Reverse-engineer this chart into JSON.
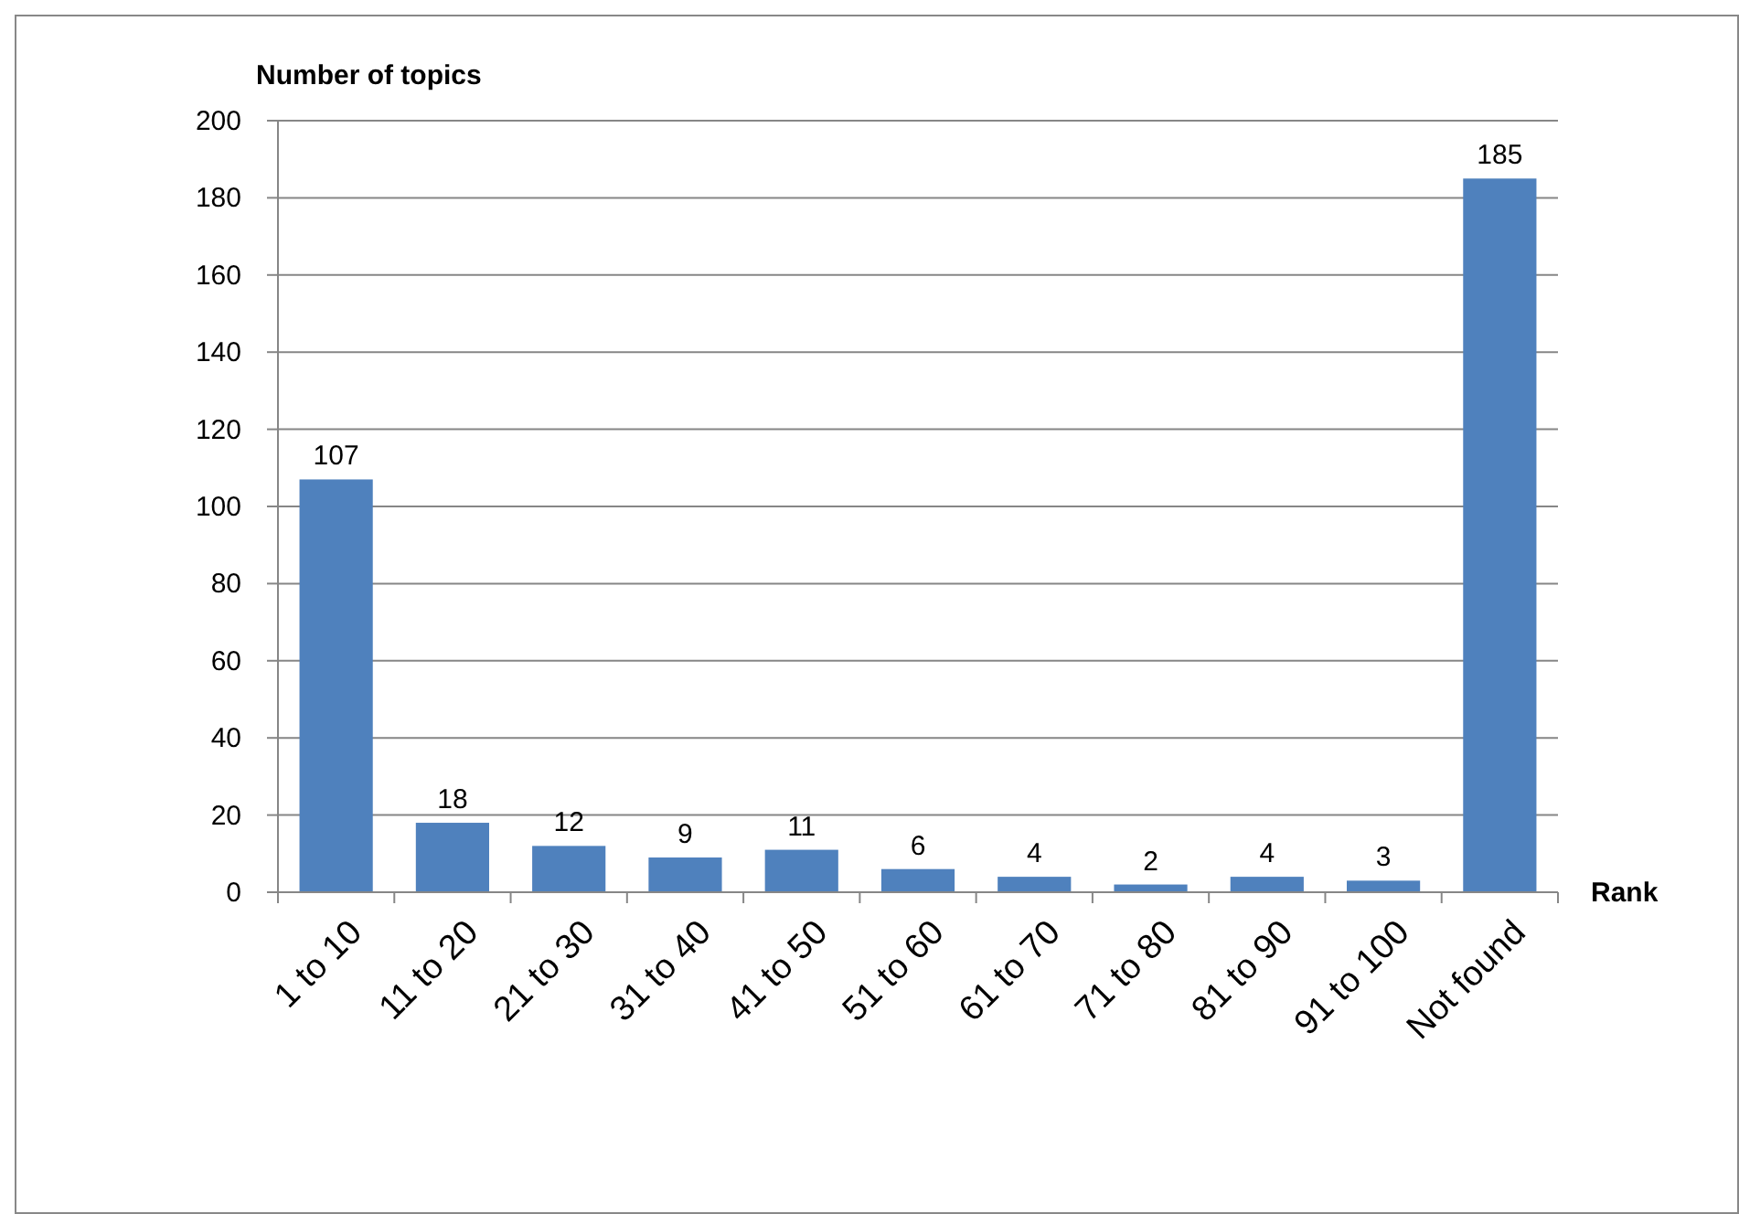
{
  "chart_data": {
    "type": "bar",
    "ylabel": "Number of topics",
    "xlabel": "Rank",
    "categories": [
      "1 to 10",
      "11 to 20",
      "21 to 30",
      "31 to 40",
      "41 to 50",
      "51 to 60",
      "61 to 70",
      "71 to 80",
      "81 to 90",
      "91 to 100",
      "Not found"
    ],
    "values": [
      107,
      18,
      12,
      9,
      11,
      6,
      4,
      2,
      4,
      3,
      185
    ],
    "color": "#4f81bd",
    "ylim": [
      0,
      200
    ],
    "yticks": [
      0,
      20,
      40,
      60,
      80,
      100,
      120,
      140,
      160,
      180,
      200
    ],
    "grid": "y",
    "data_labels": true
  }
}
